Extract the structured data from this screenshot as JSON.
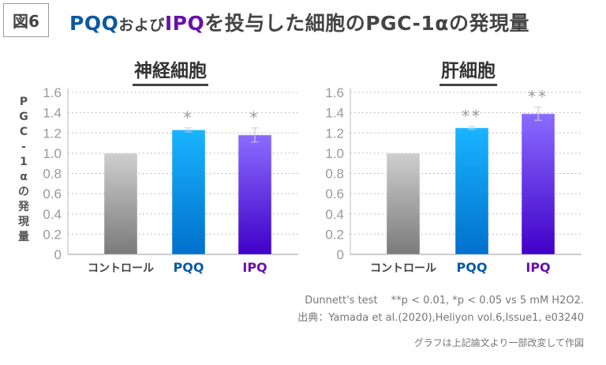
{
  "figure_label": "図6",
  "title": {
    "pqq": "PQQ",
    "and": "および",
    "ipq": "IPQ",
    "rest": "を投与した細胞のPGC-1αの発現量"
  },
  "ylabel_chars": [
    "P",
    "G",
    "C",
    "-",
    "1",
    "α",
    "の",
    "発",
    "現",
    "量"
  ],
  "colors": {
    "pqq_label": "#0a5aa0",
    "ipq_label": "#6a10a8",
    "control_bar": [
      "#cfcfcf",
      "#7a7a7a"
    ],
    "pqq_bar": [
      "#1ab4ff",
      "#0070cc"
    ],
    "ipq_bar": [
      "#8a6cff",
      "#4000c8"
    ]
  },
  "chart_data": [
    {
      "type": "bar",
      "title": "神経細胞",
      "ylabel": "PGC-1αの発現量",
      "ylim": [
        0,
        1.6
      ],
      "yticks": [
        "0",
        "0.2",
        "0.4",
        "0.6",
        "0.8",
        "1.0",
        "1.2",
        "1.4",
        "1.6"
      ],
      "grid": true,
      "categories": [
        "コントロール",
        "PQQ",
        "IPQ"
      ],
      "values": [
        1.0,
        1.23,
        1.18
      ],
      "errors": [
        0,
        0.02,
        0.07
      ],
      "significance": [
        "",
        "*",
        "*"
      ]
    },
    {
      "type": "bar",
      "title": "肝細胞",
      "ylim": [
        0,
        1.6
      ],
      "yticks": [
        "0",
        "0.2",
        "0.4",
        "0.6",
        "0.8",
        "1.0",
        "1.2",
        "1.4",
        "1.6"
      ],
      "grid": true,
      "categories": [
        "コントロール",
        "PQQ",
        "IPQ"
      ],
      "values": [
        1.0,
        1.25,
        1.39
      ],
      "errors": [
        0,
        0.015,
        0.065
      ],
      "significance": [
        "",
        "**",
        "**"
      ]
    }
  ],
  "notes": {
    "test": "Dunnett's test　 **p < 0.01, *p < 0.05 vs 5 mM H2O2.",
    "source": "出典：Yamada et al.(2020),Heliyon vol.6,Issue1, e03240",
    "modified": "グラフは上記論文より一部改変して作図"
  }
}
